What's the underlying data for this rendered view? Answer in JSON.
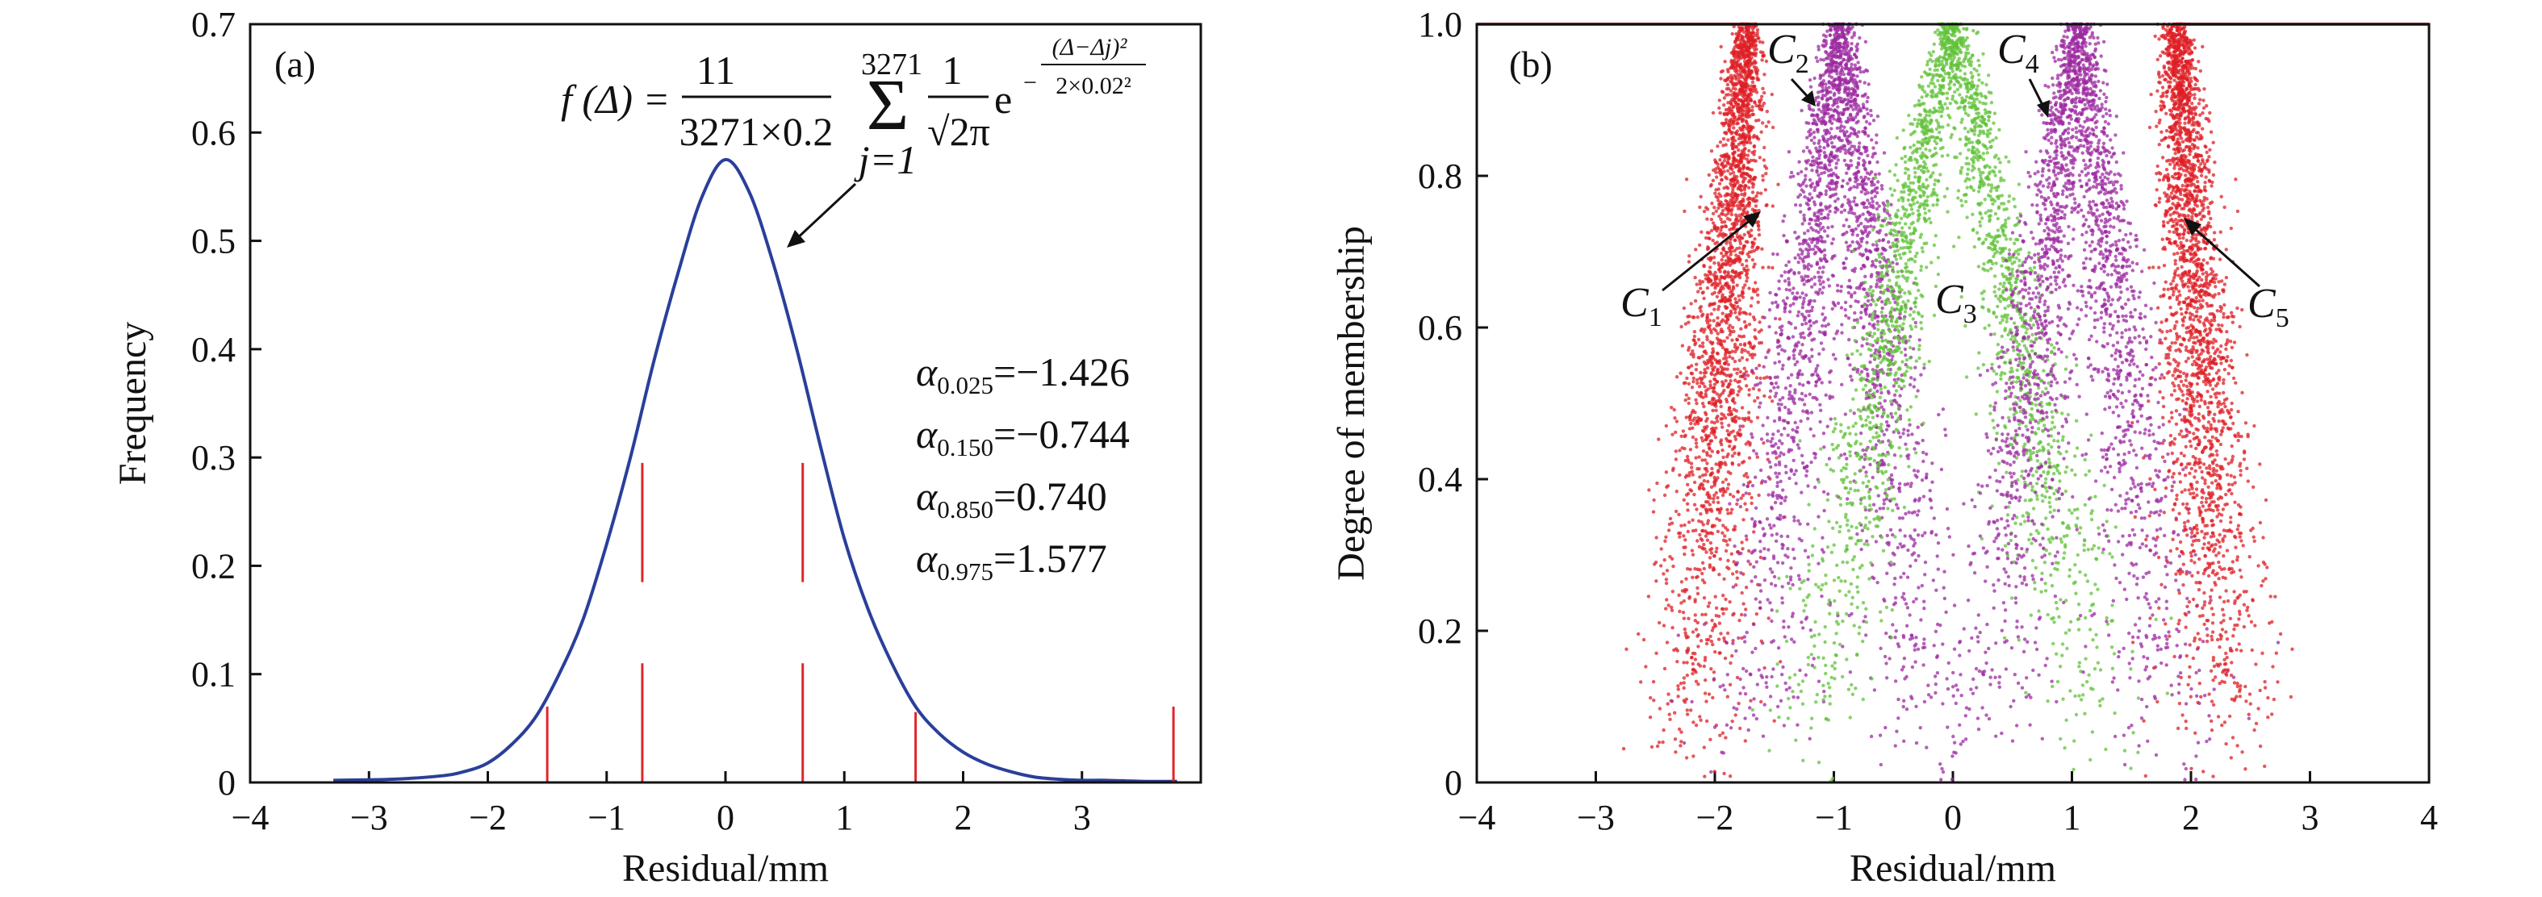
{
  "colors": {
    "density": "#2a3f9a",
    "quantile": "#e0262b",
    "C1": "#dd1f26",
    "C2": "#9c2aa0",
    "C3": "#62c23a",
    "C4": "#9c2aa0",
    "C5": "#dd1f26",
    "axis": "#111111"
  },
  "panels": {
    "a": {
      "tag": "(a)",
      "formula": {
        "lhs": "f (Δ) =",
        "numerator": "11",
        "denominator": "3271×0.2",
        "sum_upper": "3271",
        "sum_lower": "j=1",
        "coef_num": "1",
        "coef_den": "√2π",
        "e": "e",
        "exp_num": "(Δ−Δj)²",
        "exp_den": "2×0.02²"
      },
      "stats": [
        {
          "symbol": "α",
          "sub": "0.025",
          "value": "=−1.426"
        },
        {
          "symbol": "α",
          "sub": "0.150",
          "value": "=−0.744"
        },
        {
          "symbol": "α",
          "sub": "0.850",
          "value": "=0.740"
        },
        {
          "symbol": "α",
          "sub": "0.975",
          "value": "=1.577"
        }
      ]
    },
    "b": {
      "tag": "(b)",
      "labels": [
        {
          "base": "C",
          "sub": "1"
        },
        {
          "base": "C",
          "sub": "2"
        },
        {
          "base": "C",
          "sub": "3"
        },
        {
          "base": "C",
          "sub": "4"
        },
        {
          "base": "C",
          "sub": "5"
        }
      ]
    }
  },
  "chart_data": [
    {
      "type": "line",
      "panel": "a",
      "xlabel": "Residual/mm",
      "ylabel": "Frequency",
      "xlim": [
        -4,
        4
      ],
      "ylim": [
        0,
        0.7
      ],
      "xticks": [
        "−4",
        "−3",
        "−2",
        "−1",
        "0",
        "1",
        "2",
        "3"
      ],
      "yticks": [
        "0",
        "0.1",
        "0.2",
        "0.3",
        "0.4",
        "0.5",
        "0.6",
        "0.7"
      ],
      "series": [
        {
          "x": [
            -3.3,
            -2.8,
            -2.4,
            -2.2,
            -2.0,
            -1.8,
            -1.6,
            -1.4,
            -1.2,
            -1.0,
            -0.8,
            -0.6,
            -0.4,
            -0.2,
            0.0,
            0.2,
            0.4,
            0.6,
            0.8,
            1.0,
            1.2,
            1.4,
            1.6,
            1.8,
            2.0,
            2.2,
            2.4,
            2.6,
            2.8,
            3.0,
            3.2,
            3.5,
            3.8
          ],
          "y": [
            0.002,
            0.003,
            0.006,
            0.01,
            0.018,
            0.035,
            0.06,
            0.1,
            0.15,
            0.22,
            0.3,
            0.39,
            0.47,
            0.54,
            0.575,
            0.545,
            0.48,
            0.4,
            0.31,
            0.225,
            0.16,
            0.11,
            0.07,
            0.045,
            0.028,
            0.017,
            0.01,
            0.005,
            0.003,
            0.002,
            0.002,
            0.001,
            0.001
          ]
        }
      ],
      "vertical_markers": [
        {
          "x": -1.5,
          "y0": 0,
          "y1": 0.07
        },
        {
          "x": -0.7,
          "y0": 0,
          "y1": 0.11
        },
        {
          "x": -0.7,
          "y0": 0.185,
          "y1": 0.295
        },
        {
          "x": 0.65,
          "y0": 0,
          "y1": 0.11
        },
        {
          "x": 0.65,
          "y0": 0.185,
          "y1": 0.295
        },
        {
          "x": 1.6,
          "y0": 0,
          "y1": 0.065
        },
        {
          "x": 3.77,
          "y0": 0,
          "y1": 0.07
        }
      ]
    },
    {
      "type": "scatter",
      "panel": "b",
      "xlabel": "Residual/mm",
      "ylabel": "Degree of membership",
      "xlim": [
        -4,
        4
      ],
      "ylim": [
        0,
        1.0
      ],
      "xticks": [
        "−4",
        "−3",
        "−2",
        "−1",
        "0",
        "1",
        "2",
        "3",
        "4"
      ],
      "yticks": [
        "0",
        "0.2",
        "0.4",
        "0.6",
        "0.8",
        "1.0"
      ],
      "series": [
        {
          "name": "C1",
          "center": -1.7,
          "side": "left",
          "halfwidth": 0.5
        },
        {
          "name": "C2",
          "center": -0.95,
          "side": "both",
          "halfwidth": 0.75
        },
        {
          "name": "C3",
          "center": 0.0,
          "side": "both",
          "halfwidth": 1.25
        },
        {
          "name": "C4",
          "center": 1.05,
          "side": "both",
          "halfwidth": 0.8
        },
        {
          "name": "C5",
          "center": 1.85,
          "side": "right",
          "halfwidth": 0.45
        }
      ]
    }
  ]
}
